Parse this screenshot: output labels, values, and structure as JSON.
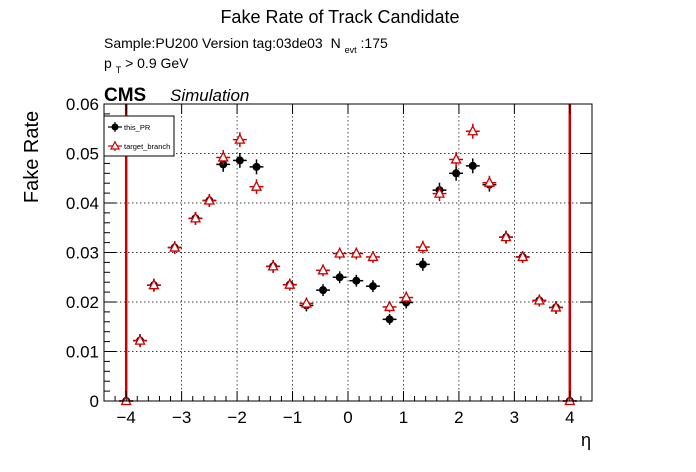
{
  "chart_data": {
    "type": "scatter",
    "title": "Fake Rate of Track Candidate",
    "info": {
      "sample_version": "Sample:PU200   Version tag:03de03",
      "nevt_main": "N",
      "nevt_sub": "evt",
      "nevt_value": ":175",
      "pt_main": "p",
      "pt_sub": "T",
      "pt_cut": " > 0.9 GeV"
    },
    "experiment": "CMS",
    "status": "Simulation",
    "xlabel": "η",
    "ylabel": "Fake Rate",
    "xlim": [
      -4.4,
      4.4
    ],
    "ylim": [
      0,
      0.06
    ],
    "x_ticks": [
      -4,
      -3,
      -2,
      -1,
      0,
      1,
      2,
      3,
      4
    ],
    "x_tick_labels": [
      "−4",
      "−3",
      "−2",
      "−1",
      "0",
      "1",
      "2",
      "3",
      "4"
    ],
    "y_ticks": [
      0,
      0.01,
      0.02,
      0.03,
      0.04,
      0.05,
      0.06
    ],
    "y_tick_labels": [
      "0",
      "0.01",
      "0.02",
      "0.03",
      "0.04",
      "0.05",
      "0.06"
    ],
    "grid": true,
    "legend_position": "top-left",
    "bin_half_width": 0.125,
    "vertical_lines": [
      -4,
      4
    ],
    "vertical_line_color": "#cc0000",
    "series": [
      {
        "name": "this_PR",
        "marker": "filled-circle",
        "color": "#000000",
        "points": [
          {
            "x": -4.0,
            "y": 0.0,
            "err": 0.0005
          },
          {
            "x": -3.75,
            "y": 0.0122,
            "err": 0.0013
          },
          {
            "x": -3.5,
            "y": 0.0234,
            "err": 0.0013
          },
          {
            "x": -3.125,
            "y": 0.031,
            "err": 0.0013
          },
          {
            "x": -2.75,
            "y": 0.0369,
            "err": 0.0013
          },
          {
            "x": -2.5,
            "y": 0.0405,
            "err": 0.0013
          },
          {
            "x": -2.25,
            "y": 0.0478,
            "err": 0.0015
          },
          {
            "x": -1.95,
            "y": 0.0486,
            "err": 0.0015
          },
          {
            "x": -1.65,
            "y": 0.0473,
            "err": 0.0015
          },
          {
            "x": -1.35,
            "y": 0.0272,
            "err": 0.0013
          },
          {
            "x": -1.05,
            "y": 0.0235,
            "err": 0.0012
          },
          {
            "x": -0.75,
            "y": 0.0193,
            "err": 0.0012
          },
          {
            "x": -0.45,
            "y": 0.0224,
            "err": 0.0012
          },
          {
            "x": -0.15,
            "y": 0.025,
            "err": 0.0012
          },
          {
            "x": 0.15,
            "y": 0.0243,
            "err": 0.0012
          },
          {
            "x": 0.45,
            "y": 0.0232,
            "err": 0.0012
          },
          {
            "x": 0.75,
            "y": 0.0165,
            "err": 0.0011
          },
          {
            "x": 1.05,
            "y": 0.0199,
            "err": 0.0012
          },
          {
            "x": 1.35,
            "y": 0.0276,
            "err": 0.0013
          },
          {
            "x": 1.65,
            "y": 0.0426,
            "err": 0.0015
          },
          {
            "x": 1.95,
            "y": 0.046,
            "err": 0.0015
          },
          {
            "x": 2.25,
            "y": 0.0475,
            "err": 0.0015
          },
          {
            "x": 2.55,
            "y": 0.0437,
            "err": 0.0014
          },
          {
            "x": 2.85,
            "y": 0.0331,
            "err": 0.0013
          },
          {
            "x": 3.15,
            "y": 0.0291,
            "err": 0.0012
          },
          {
            "x": 3.45,
            "y": 0.0203,
            "err": 0.0012
          },
          {
            "x": 3.75,
            "y": 0.0189,
            "err": 0.0013
          },
          {
            "x": 4.0,
            "y": 0.0,
            "err": 0.0005
          }
        ]
      },
      {
        "name": "target_branch",
        "marker": "open-triangle",
        "color": "#cc0000",
        "points": [
          {
            "x": -4.0,
            "y": 0.0,
            "err": 0.0005
          },
          {
            "x": -3.75,
            "y": 0.0122,
            "err": 0.0013
          },
          {
            "x": -3.5,
            "y": 0.0234,
            "err": 0.0013
          },
          {
            "x": -3.125,
            "y": 0.031,
            "err": 0.0013
          },
          {
            "x": -2.75,
            "y": 0.0369,
            "err": 0.0013
          },
          {
            "x": -2.5,
            "y": 0.0405,
            "err": 0.0013
          },
          {
            "x": -2.25,
            "y": 0.0492,
            "err": 0.0015
          },
          {
            "x": -1.95,
            "y": 0.0528,
            "err": 0.0015
          },
          {
            "x": -1.65,
            "y": 0.0433,
            "err": 0.0015
          },
          {
            "x": -1.35,
            "y": 0.0272,
            "err": 0.0013
          },
          {
            "x": -1.05,
            "y": 0.0235,
            "err": 0.0012
          },
          {
            "x": -0.75,
            "y": 0.0197,
            "err": 0.0012
          },
          {
            "x": -0.45,
            "y": 0.0264,
            "err": 0.0012
          },
          {
            "x": -0.15,
            "y": 0.0298,
            "err": 0.0012
          },
          {
            "x": 0.15,
            "y": 0.0298,
            "err": 0.0012
          },
          {
            "x": 0.45,
            "y": 0.0291,
            "err": 0.0012
          },
          {
            "x": 0.75,
            "y": 0.019,
            "err": 0.0011
          },
          {
            "x": 1.05,
            "y": 0.0209,
            "err": 0.0012
          },
          {
            "x": 1.35,
            "y": 0.0311,
            "err": 0.0013
          },
          {
            "x": 1.65,
            "y": 0.0419,
            "err": 0.0015
          },
          {
            "x": 1.95,
            "y": 0.0488,
            "err": 0.0015
          },
          {
            "x": 2.25,
            "y": 0.0545,
            "err": 0.0015
          },
          {
            "x": 2.55,
            "y": 0.0441,
            "err": 0.0014
          },
          {
            "x": 2.85,
            "y": 0.0331,
            "err": 0.0013
          },
          {
            "x": 3.15,
            "y": 0.0291,
            "err": 0.0012
          },
          {
            "x": 3.45,
            "y": 0.0203,
            "err": 0.0012
          },
          {
            "x": 3.75,
            "y": 0.0189,
            "err": 0.0013
          },
          {
            "x": 4.0,
            "y": 0.0,
            "err": 0.0005
          }
        ]
      }
    ]
  }
}
